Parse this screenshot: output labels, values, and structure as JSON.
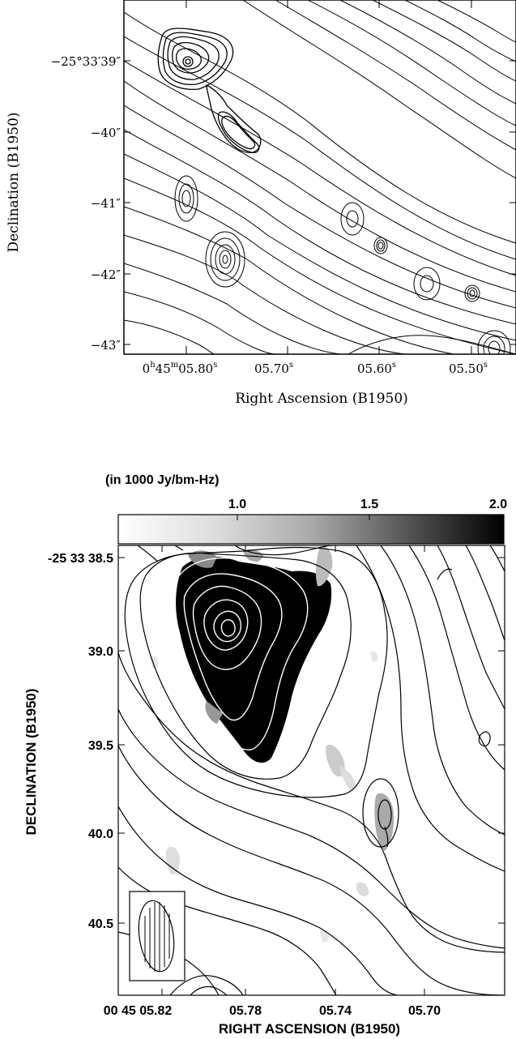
{
  "top_panel": {
    "y_axis_label": "Declination (B1950)",
    "x_axis_label": "Right Ascension (B1950)",
    "y_ticks": [
      "−25°33′39″",
      "−40″",
      "−41″",
      "−42″",
      "−43″"
    ],
    "x_ticks": [
      {
        "base": "0",
        "h": "h",
        "m_val": "45",
        "m": "m",
        "val": "05.80",
        "s": "s"
      },
      {
        "val": "05.70",
        "s": "s"
      },
      {
        "val": "05.60",
        "s": "s"
      },
      {
        "val": "05.50",
        "s": "s"
      }
    ]
  },
  "bottom_panel": {
    "colorbar_title": "(in 1000 Jy/bm-Hz)",
    "colorbar_ticks": [
      "1.0",
      "1.5",
      "2.0"
    ],
    "y_axis_label": "DECLINATION (B1950)",
    "x_axis_label": "RIGHT ASCENSION (B1950)",
    "y_ticks": [
      "-25 33 38.5",
      "39.0",
      "39.5",
      "40.0",
      "40.5"
    ],
    "x_ticks": [
      "00 45 05.82",
      "05.78",
      "05.74",
      "05.70"
    ],
    "colors": {
      "contour_dark": "#000000",
      "contour_light": "#ffffff",
      "grey_low": "#f4f4f4",
      "grey_high": "#000000"
    }
  }
}
